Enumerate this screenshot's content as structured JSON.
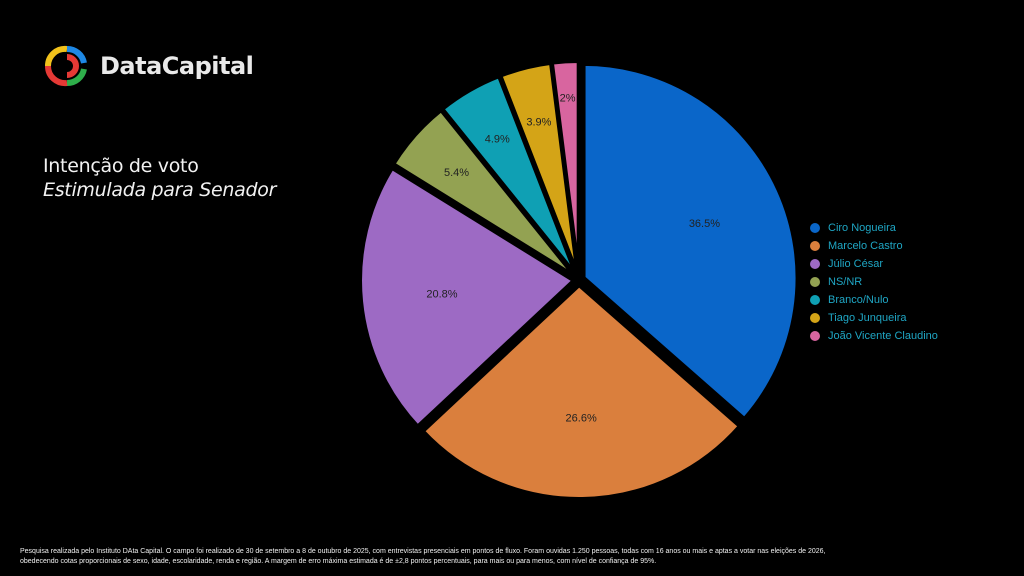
{
  "brand": {
    "name": "DataCapital",
    "logo": "datacapital-logo-icon"
  },
  "header": {
    "title": "Intenção de voto",
    "subtitle": "Estimulada para Senador"
  },
  "chart_data": {
    "type": "pie",
    "categories": [
      "Ciro Nogueira",
      "Marcelo Castro",
      "Júlio César",
      "NS/NR",
      "Branco/Nulo",
      "Tiago Junqueira",
      "João Vicente Claudino"
    ],
    "values": [
      36.5,
      26.6,
      20.8,
      5.4,
      4.9,
      3.9,
      2
    ],
    "data_labels": [
      "36.5%",
      "26.6%",
      "20.8%",
      "5.4%",
      "4.9%",
      "3.9%",
      "2%"
    ],
    "colors": [
      "#0a66c9",
      "#da7f3d",
      "#9d6ac4",
      "#93a252",
      "#0fa0b4",
      "#d4a417",
      "#d8659f"
    ],
    "legend_position": "right",
    "exploded": true
  },
  "footnote": {
    "line1": "Pesquisa realizada pelo Instituto DAta Capital. O campo foi realizado de 30 de setembro a 8 de outubro de 2025, com entrevistas presenciais em pontos de fluxo. Foram ouvidas 1.250 pessoas, todas com 16 anos ou mais e aptas a votar nas eleições de 2026,",
    "line2": "obedecendo cotas proporcionais de sexo, idade, escolaridade, renda e região. A margem de erro máxima estimada é de ±2,8 pontos percentuais, para mais ou para menos, com nível de confiança de 95%."
  }
}
